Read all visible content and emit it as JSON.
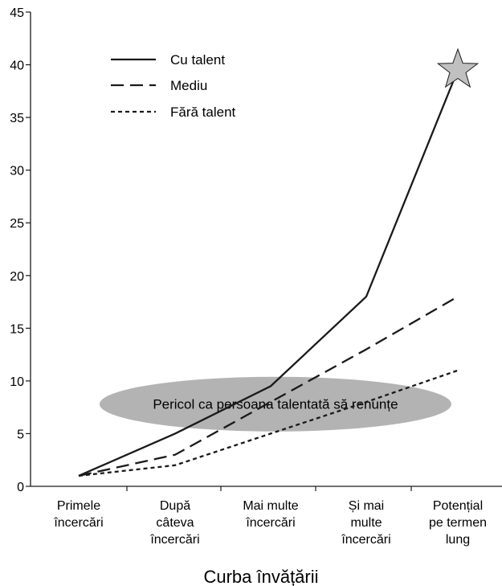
{
  "chart_data": {
    "type": "line",
    "title": "",
    "xlabel": "Curba învățării",
    "ylabel": "",
    "ylim": [
      0,
      45
    ],
    "yticks": [
      0,
      5,
      10,
      15,
      20,
      25,
      30,
      35,
      40,
      45
    ],
    "categories": [
      [
        "Primele",
        "încercări"
      ],
      [
        "După",
        "câteva",
        "încercări"
      ],
      [
        "Mai multe",
        "încercări"
      ],
      [
        "Și mai",
        "multe",
        "încercări"
      ],
      [
        "Potențial",
        "pe termen",
        "lung"
      ]
    ],
    "series": [
      {
        "name": "Cu talent",
        "style": "solid",
        "points": [
          [
            0,
            1
          ],
          [
            1,
            5
          ],
          [
            2,
            9.5
          ],
          [
            3,
            18
          ],
          [
            4,
            39.5
          ]
        ],
        "end_marker": "star"
      },
      {
        "name": "Mediu",
        "style": "long-dash",
        "points": [
          [
            0,
            1
          ],
          [
            1,
            3
          ],
          [
            2,
            8
          ],
          [
            3,
            13
          ],
          [
            4,
            18
          ]
        ]
      },
      {
        "name": "Fără talent",
        "style": "short-dash",
        "points": [
          [
            0,
            1
          ],
          [
            1,
            2
          ],
          [
            2,
            5
          ],
          [
            3,
            8
          ],
          [
            4,
            11
          ]
        ]
      }
    ],
    "annotation": {
      "text": "Pericol ca persoana talentată să renunțe",
      "center_value": [
        2.05,
        7.8
      ]
    },
    "legend": "top-left",
    "grid": false,
    "colors": {
      "line": "#1a1a1a",
      "ellipse": "#b3b3b3",
      "star_fill": "#c0c0c0"
    }
  }
}
